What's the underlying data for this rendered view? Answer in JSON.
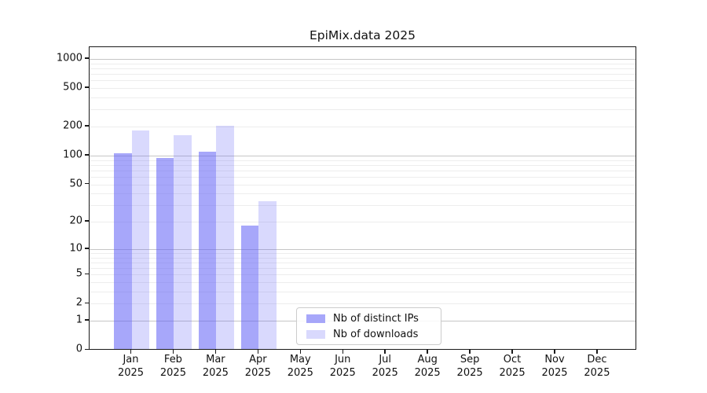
{
  "title": "EpiMix.data 2025",
  "chart_data": {
    "type": "bar",
    "title": "EpiMix.data 2025",
    "x_year_label": "2025",
    "categories": [
      "Jan 2025",
      "Feb 2025",
      "Mar 2025",
      "Apr 2025",
      "May 2025",
      "Jun 2025",
      "Jul 2025",
      "Aug 2025",
      "Sep 2025",
      "Oct 2025",
      "Nov 2025",
      "Dec 2025"
    ],
    "month_labels": [
      "Jan",
      "Feb",
      "Mar",
      "Apr",
      "May",
      "Jun",
      "Jul",
      "Aug",
      "Sep",
      "Oct",
      "Nov",
      "Dec"
    ],
    "series": [
      {
        "name": "Nb of distinct IPs",
        "color": "rgba(95,95,245,0.55)",
        "values": [
          105,
          95,
          110,
          18,
          null,
          null,
          null,
          null,
          null,
          null,
          null,
          null
        ]
      },
      {
        "name": "Nb of downloads",
        "color": "rgba(95,95,245,0.24)",
        "values": [
          183,
          164,
          205,
          33,
          null,
          null,
          null,
          null,
          null,
          null,
          null,
          null
        ]
      }
    ],
    "y_scale": "log1p",
    "y_ticks": [
      0,
      1,
      2,
      5,
      10,
      20,
      50,
      100,
      200,
      500,
      1000
    ],
    "y_major_gridlines": [
      1,
      10,
      100,
      1000
    ],
    "y_minor_gridlines": [
      2,
      3,
      4,
      5,
      6,
      7,
      8,
      9,
      20,
      30,
      40,
      50,
      60,
      70,
      80,
      90,
      200,
      300,
      400,
      500,
      600,
      700,
      800,
      900
    ],
    "ylim": [
      0,
      1325
    ],
    "grid": "horizontal",
    "legend_position": "inside-bottom-center",
    "colors": {
      "bar_base": "#5f5ff5",
      "axis": "#1a1a1a",
      "grid_major": "#c6c6c6",
      "grid_minor": "#ededed"
    }
  }
}
